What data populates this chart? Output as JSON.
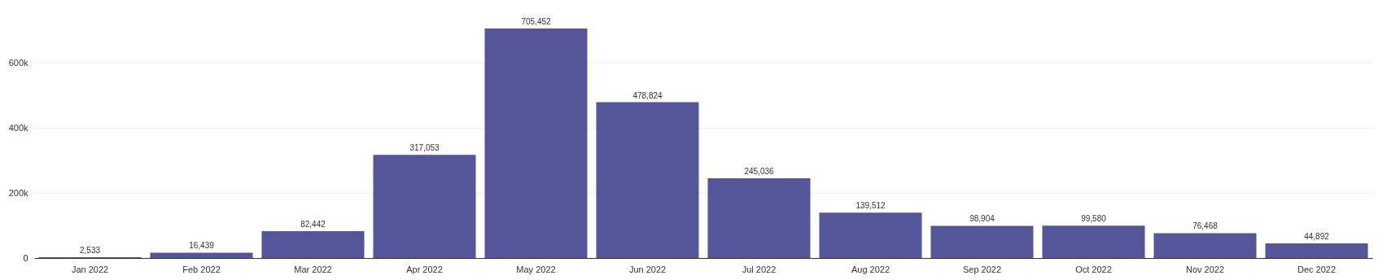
{
  "chart_data": {
    "type": "bar",
    "categories": [
      "Jan 2022",
      "Feb 2022",
      "Mar 2022",
      "Apr 2022",
      "May 2022",
      "Jun 2022",
      "Jul 2022",
      "Aug 2022",
      "Sep 2022",
      "Oct 2022",
      "Nov 2022",
      "Dec 2022"
    ],
    "values": [
      2533,
      16439,
      82442,
      317053,
      705452,
      478824,
      245036,
      139512,
      98904,
      99580,
      76468,
      44892
    ],
    "color": "#55559a",
    "ylim": [
      0,
      705452
    ],
    "value_labels": [
      "2,533",
      "16,439",
      "82,442",
      "317,053",
      "705,452",
      "478,824",
      "245,036",
      "139,512",
      "98,904",
      "99,580",
      "76,468",
      "44,892"
    ],
    "yticks": [
      {
        "value": 0,
        "label": "0"
      },
      {
        "value": 200000,
        "label": "200k"
      },
      {
        "value": 400000,
        "label": "400k"
      },
      {
        "value": 600000,
        "label": "600k"
      }
    ],
    "grid": "y"
  }
}
